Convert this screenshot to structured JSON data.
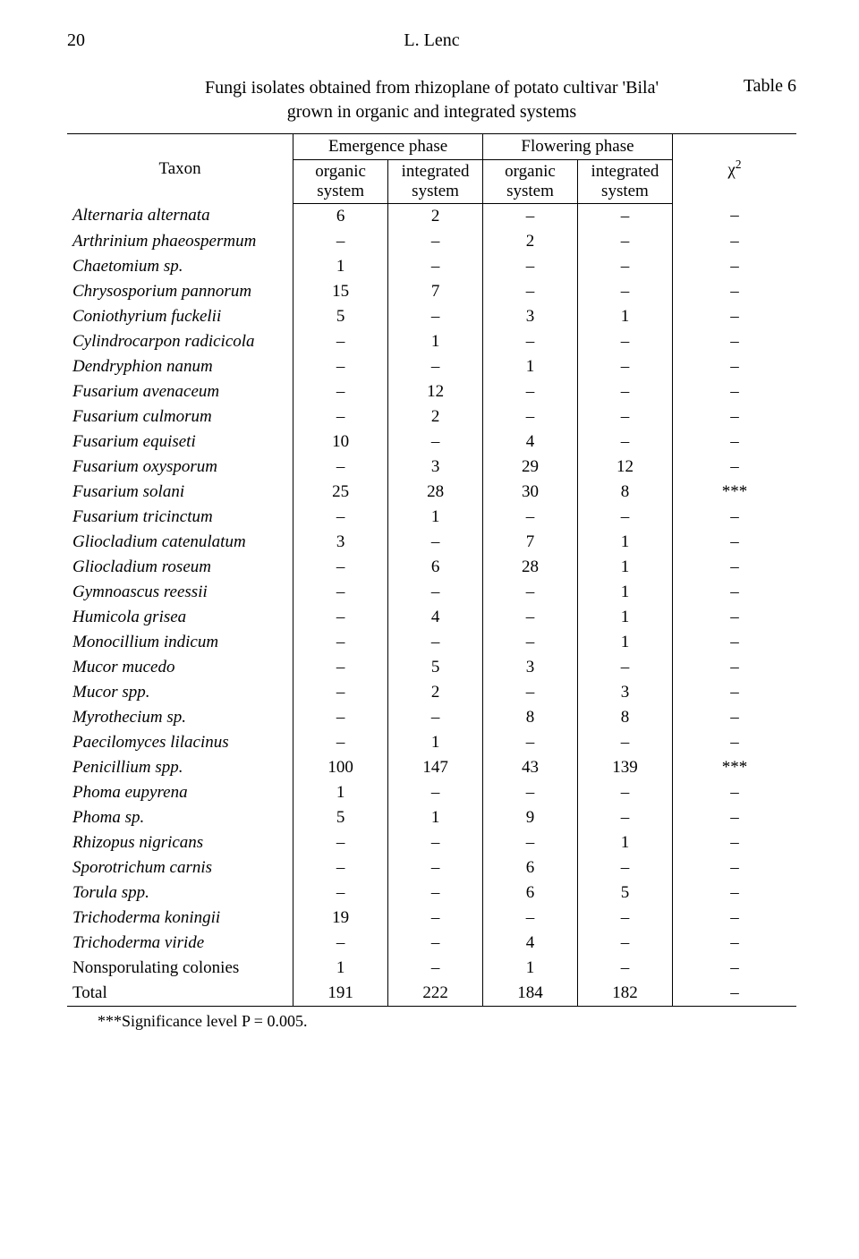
{
  "page_number": "20",
  "running_author": "L. Lenc",
  "table_label": "Table 6",
  "caption_line1": "Fungi isolates obtained from rhizoplane of potato cultivar 'Bila'",
  "caption_line2": "grown in organic and integrated systems",
  "header": {
    "taxon": "Taxon",
    "emergence": "Emergence phase",
    "flowering": "Flowering phase",
    "chi": "χ",
    "chi_sup": "2",
    "organic": "organic",
    "integrated": "integrated",
    "system": "system"
  },
  "rows": [
    {
      "taxon": "Alternaria alternata",
      "v": [
        "6",
        "2",
        "–",
        "–",
        "–"
      ]
    },
    {
      "taxon": "Arthrinium phaeospermum",
      "v": [
        "–",
        "–",
        "2",
        "–",
        "–"
      ]
    },
    {
      "taxon": "Chaetomium sp.",
      "v": [
        "1",
        "–",
        "–",
        "–",
        "–"
      ]
    },
    {
      "taxon": "Chrysosporium pannorum",
      "v": [
        "15",
        "7",
        "–",
        "–",
        "–"
      ]
    },
    {
      "taxon": "Coniothyrium fuckelii",
      "v": [
        "5",
        "–",
        "3",
        "1",
        "–"
      ]
    },
    {
      "taxon": "Cylindrocarpon radicicola",
      "v": [
        "–",
        "1",
        "–",
        "–",
        "–"
      ]
    },
    {
      "taxon": "Dendryphion nanum",
      "v": [
        "–",
        "–",
        "1",
        "–",
        "–"
      ]
    },
    {
      "taxon": "Fusarium avenaceum",
      "v": [
        "–",
        "12",
        "–",
        "–",
        "–"
      ]
    },
    {
      "taxon": "Fusarium culmorum",
      "v": [
        "–",
        "2",
        "–",
        "–",
        "–"
      ]
    },
    {
      "taxon": "Fusarium equiseti",
      "v": [
        "10",
        "–",
        "4",
        "–",
        "–"
      ]
    },
    {
      "taxon": "Fusarium oxysporum",
      "v": [
        "–",
        "3",
        "29",
        "12",
        "–"
      ]
    },
    {
      "taxon": "Fusarium solani",
      "v": [
        "25",
        "28",
        "30",
        "8",
        "***"
      ]
    },
    {
      "taxon": "Fusarium tricinctum",
      "v": [
        "–",
        "1",
        "–",
        "–",
        "–"
      ]
    },
    {
      "taxon": "Gliocladium catenulatum",
      "v": [
        "3",
        "–",
        "7",
        "1",
        "–"
      ]
    },
    {
      "taxon": "Gliocladium roseum",
      "v": [
        "–",
        "6",
        "28",
        "1",
        "–"
      ]
    },
    {
      "taxon": "Gymnoascus reessii",
      "v": [
        "–",
        "–",
        "–",
        "1",
        "–"
      ]
    },
    {
      "taxon": "Humicola grisea",
      "v": [
        "–",
        "4",
        "–",
        "1",
        "–"
      ]
    },
    {
      "taxon": "Monocillium indicum",
      "v": [
        "–",
        "–",
        "–",
        "1",
        "–"
      ]
    },
    {
      "taxon": "Mucor mucedo",
      "v": [
        "–",
        "5",
        "3",
        "–",
        "–"
      ]
    },
    {
      "taxon": "Mucor spp.",
      "v": [
        "–",
        "2",
        "–",
        "3",
        "–"
      ]
    },
    {
      "taxon": "Myrothecium sp.",
      "v": [
        "–",
        "–",
        "8",
        "8",
        "–"
      ]
    },
    {
      "taxon": "Paecilomyces lilacinus",
      "v": [
        "–",
        "1",
        "–",
        "–",
        "–"
      ]
    },
    {
      "taxon": "Penicillium spp.",
      "v": [
        "100",
        "147",
        "43",
        "139",
        "***"
      ]
    },
    {
      "taxon": "Phoma eupyrena",
      "v": [
        "1",
        "–",
        "–",
        "–",
        "–"
      ]
    },
    {
      "taxon": "Phoma sp.",
      "v": [
        "5",
        "1",
        "9",
        "–",
        "–"
      ]
    },
    {
      "taxon": "Rhizopus nigricans",
      "v": [
        "–",
        "–",
        "–",
        "1",
        "–"
      ]
    },
    {
      "taxon": "Sporotrichum carnis",
      "v": [
        "–",
        "–",
        "6",
        "–",
        "–"
      ]
    },
    {
      "taxon": "Torula spp.",
      "v": [
        "–",
        "–",
        "6",
        "5",
        "–"
      ]
    },
    {
      "taxon": "Trichoderma koningii",
      "v": [
        "19",
        "–",
        "–",
        "–",
        "–"
      ]
    },
    {
      "taxon": "Trichoderma viride",
      "v": [
        "–",
        "–",
        "4",
        "–",
        "–"
      ]
    },
    {
      "taxon": "Nonsporulating colonies",
      "v": [
        "1",
        "–",
        "1",
        "–",
        "–"
      ],
      "upright": true
    },
    {
      "taxon": "Total",
      "v": [
        "191",
        "222",
        "184",
        "182",
        "–"
      ],
      "upright": true,
      "total": true
    }
  ],
  "footnote": "***Significance level P = 0.005.",
  "colwidths": [
    "31%",
    "13%",
    "13%",
    "13%",
    "13%",
    "17%"
  ]
}
